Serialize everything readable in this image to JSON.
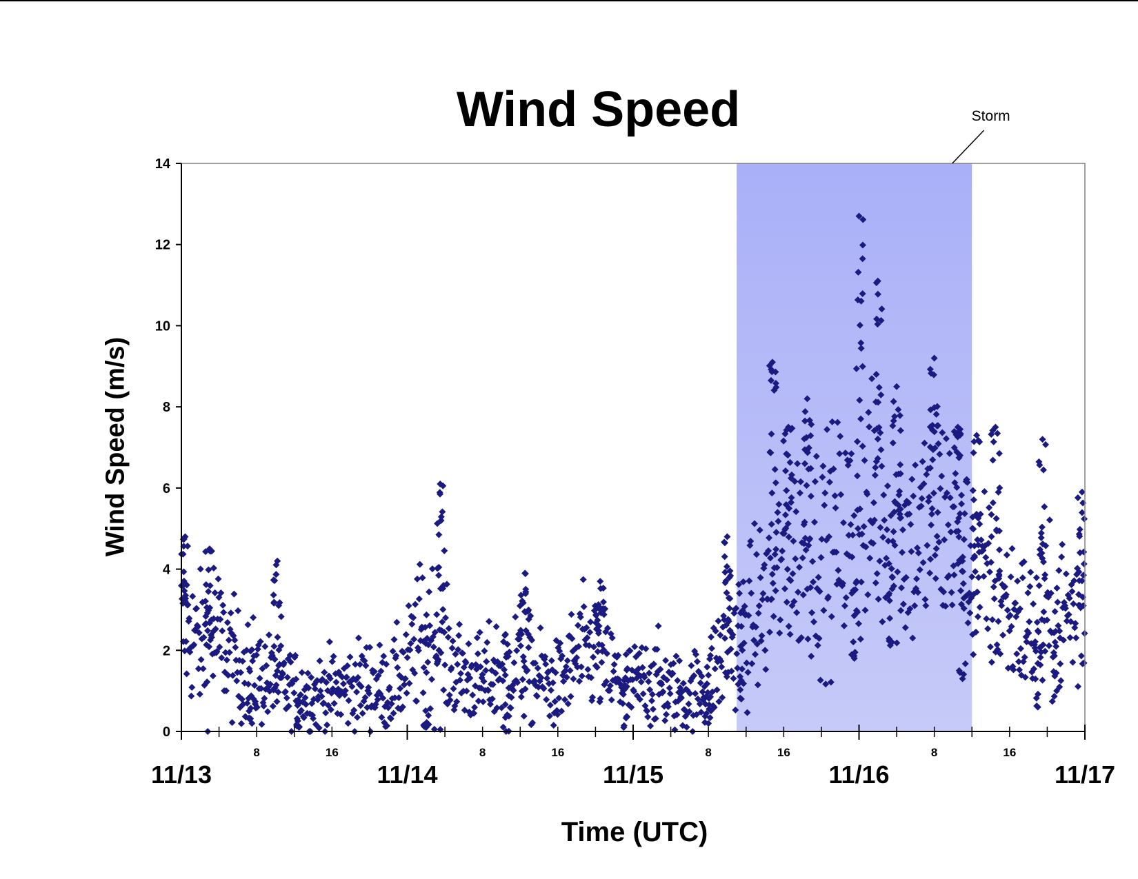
{
  "chart_data": {
    "type": "scatter",
    "title": "Wind Speed",
    "xlabel": "Time (UTC)",
    "ylabel": "Wind Speed (m/s)",
    "ylim": [
      0,
      14
    ],
    "xlim_hours": [
      0,
      96
    ],
    "y_ticks": [
      "0",
      "2",
      "4",
      "6",
      "8",
      "10",
      "12",
      "14"
    ],
    "x_day_ticks": [
      "11/13",
      "11/14",
      "11/15",
      "11/16",
      "11/17"
    ],
    "x_hour_ticks": [
      "8",
      "16"
    ],
    "grid": false,
    "legend": "none",
    "marker": "diamond",
    "marker_color": "#1a1a80",
    "storm_band": {
      "label": "Storm",
      "start_hour": 59,
      "end_hour": 84,
      "color_top": "#aab0f8",
      "color_bottom": "#c6caf8"
    },
    "series": [
      {
        "values_hourly_mean": [
          [
            0,
            2.6
          ],
          [
            2,
            2.1
          ],
          [
            4,
            2.3
          ],
          [
            6,
            1.6
          ],
          [
            8,
            1.4
          ],
          [
            10,
            1.2
          ],
          [
            12,
            1.0
          ],
          [
            14,
            0.9
          ],
          [
            16,
            1.0
          ],
          [
            18,
            1.1
          ],
          [
            20,
            1.2
          ],
          [
            22,
            1.0
          ],
          [
            24,
            1.6
          ],
          [
            26,
            2.6
          ],
          [
            28,
            1.8
          ],
          [
            30,
            1.4
          ],
          [
            32,
            1.2
          ],
          [
            34,
            1.6
          ],
          [
            36,
            1.7
          ],
          [
            38,
            1.3
          ],
          [
            40,
            1.1
          ],
          [
            42,
            1.8
          ],
          [
            44,
            2.0
          ],
          [
            46,
            1.3
          ],
          [
            48,
            1.1
          ],
          [
            50,
            1.3
          ],
          [
            52,
            1.0
          ],
          [
            54,
            0.9
          ],
          [
            56,
            1.3
          ],
          [
            58,
            2.1
          ],
          [
            60,
            2.6
          ],
          [
            62,
            3.2
          ],
          [
            64,
            4.3
          ],
          [
            66,
            4.6
          ],
          [
            68,
            4.4
          ],
          [
            70,
            4.9
          ],
          [
            72,
            4.9
          ],
          [
            74,
            5.5
          ],
          [
            76,
            4.8
          ],
          [
            78,
            4.6
          ],
          [
            80,
            5.3
          ],
          [
            82,
            5.0
          ],
          [
            84,
            3.8
          ],
          [
            86,
            3.6
          ],
          [
            88,
            3.0
          ],
          [
            90,
            2.5
          ],
          [
            92,
            2.6
          ],
          [
            94,
            2.9
          ],
          [
            96,
            3.0
          ]
        ],
        "peaks": [
          [
            0.4,
            4.8
          ],
          [
            3.0,
            4.5
          ],
          [
            10.2,
            4.2
          ],
          [
            27.5,
            6.1
          ],
          [
            36.5,
            3.9
          ],
          [
            44.5,
            3.7
          ],
          [
            58.0,
            4.8
          ],
          [
            62.8,
            9.1
          ],
          [
            64.5,
            7.5
          ],
          [
            66.5,
            8.2
          ],
          [
            72.0,
            12.7
          ],
          [
            74.0,
            11.1
          ],
          [
            76.0,
            8.5
          ],
          [
            80.0,
            9.2
          ],
          [
            82.5,
            7.5
          ],
          [
            84.5,
            7.3
          ],
          [
            86.5,
            7.5
          ],
          [
            91.5,
            7.2
          ],
          [
            95.7,
            5.9
          ]
        ],
        "lows": [
          [
            7.5,
            0.2
          ],
          [
            12.5,
            0.1
          ],
          [
            26.0,
            0.1
          ],
          [
            34.5,
            0.0
          ],
          [
            47.0,
            0.1
          ],
          [
            56.0,
            0.2
          ],
          [
            59.5,
            0.8
          ],
          [
            71.5,
            1.8
          ],
          [
            75.5,
            2.2
          ],
          [
            83.0,
            1.3
          ],
          [
            91.0,
            0.6
          ],
          [
            93.0,
            1.0
          ]
        ]
      }
    ]
  }
}
